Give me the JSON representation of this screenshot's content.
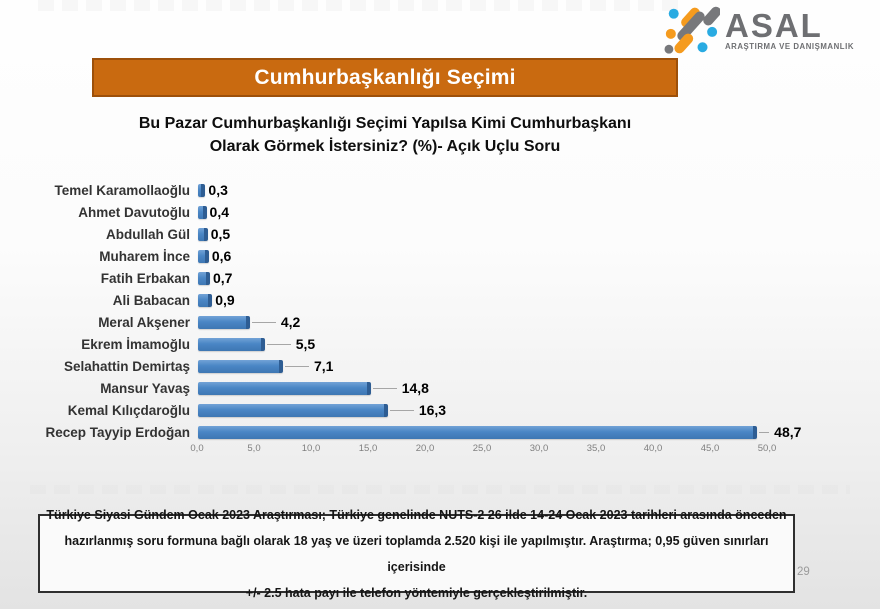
{
  "page_number": "29",
  "logo": {
    "wordmark": "ASAL",
    "subtitle": "ARAŞTIRMA VE DANIŞMANLIK"
  },
  "banner": {
    "label": "Cumhurbaşkanlığı Seçimi"
  },
  "chart_data": {
    "type": "bar",
    "orientation": "horizontal",
    "title": "Bu Pazar Cumhurbaşkanlığı Seçimi Yapılsa Kimi Cumhurbaşkanı Olarak Görmek İstersiniz? (%)- Açık Uçlu Soru",
    "title_lines": [
      "Bu Pazar Cumhurbaşkanlığı Seçimi Yapılsa Kimi Cumhurbaşkanı",
      "Olarak Görmek İstersiniz? (%)- Açık Uçlu Soru"
    ],
    "categories": [
      "Temel Karamollaoğlu",
      "Ahmet Davutoğlu",
      "Abdullah Gül",
      "Muharem İnce",
      "Fatih Erbakan",
      "Ali Babacan",
      "Meral Akşener",
      "Ekrem İmamoğlu",
      "Selahattin Demirtaş",
      "Mansur Yavaş",
      "Kemal Kılıçdaroğlu",
      "Recep Tayyip Erdoğan"
    ],
    "values": [
      0.3,
      0.4,
      0.5,
      0.6,
      0.7,
      0.9,
      4.2,
      5.5,
      7.1,
      14.8,
      16.3,
      48.7
    ],
    "value_labels": [
      "0,3",
      "0,4",
      "0,5",
      "0,6",
      "0,7",
      "0,9",
      "4,2",
      "5,5",
      "7,1",
      "14,8",
      "16,3",
      "48,7"
    ],
    "x_ticks": [
      "0,0",
      "5,0",
      "10,0",
      "15,0",
      "20,0",
      "25,0",
      "30,0",
      "35,0",
      "40,0",
      "45,0",
      "50,0"
    ],
    "xlim": [
      0,
      50
    ],
    "x_tick_interval": 5,
    "xlabel": "",
    "ylabel": "",
    "grid": false,
    "legend": false,
    "data_labels": true
  },
  "footnote": {
    "lines": [
      "Türkiye Siyasi Gündem Ocak 2023 Araştırması; Türkiye genelinde NUTS-2 26 ilde 14-24 Ocak 2023 tarihleri arasında önceden",
      "hazırlanmış soru formuna bağlı olarak 18 yaş ve üzeri toplamda 2.520 kişi ile yapılmıştır. Araştırma; 0,95 güven sınırları içerisinde",
      "+/- 2.5 hata payı ile telefon yöntemiyle gerçekleştirilmiştir."
    ]
  },
  "colors": {
    "banner_bg": "#C96A10",
    "banner_border": "#9D500A",
    "banner_text": "#FFFFFF",
    "bar": "#4A86C5",
    "bar_highlight": "#72A3D6",
    "bar_edge": "#2E5D93",
    "leader_line": "#A6A6A6",
    "axis_text": "#7F7F7F",
    "title_text": "#0E0E0E",
    "category_text": "#333333",
    "footnote_text": "#151515",
    "page_number_text": "#9B9B9B",
    "logo_orange": "#F59B1E",
    "logo_gray": "#77787B",
    "logo_blue": "#29ABE2",
    "logo_text": "#6E6F72"
  }
}
